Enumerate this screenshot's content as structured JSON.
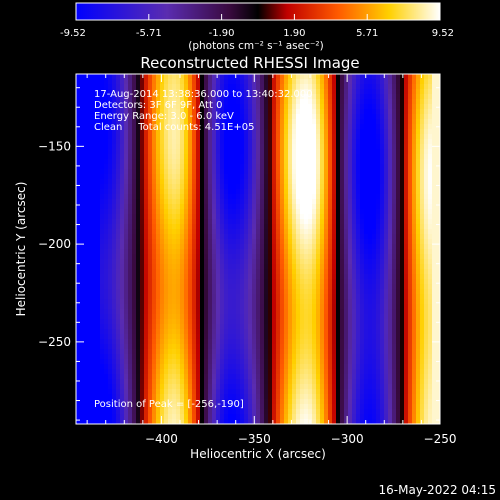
{
  "colorbar": {
    "ticks": [
      "-9.52",
      "-5.71",
      "-1.90",
      "1.90",
      "5.71",
      "9.52"
    ],
    "unit_label": "(photons cm⁻² s⁻¹ asec⁻²)",
    "min": -9.52,
    "max": 9.52
  },
  "title": "Reconstructed RHESSI Image",
  "annotations": {
    "time": "17-Aug-2014 13:38:36.000 to 13:40:32.000",
    "detectors": "Detectors: 3F 6F 9F, Att 0",
    "energy": "Energy Range: 3.0 - 6.0 keV",
    "clean": "Clean     Total counts: 4.51E+05",
    "peak": "Position of Peak = [-256,-190]"
  },
  "footer_date": "16-May-2022 04:15",
  "chart_data": {
    "type": "heatmap",
    "title": "Reconstructed RHESSI Image",
    "xlabel": "Heliocentric X (arcsec)",
    "ylabel": "Heliocentric Y (arcsec)",
    "xlim": [
      -446,
      -250
    ],
    "ylim": [
      -292,
      -113
    ],
    "x_ticks": [
      -400,
      -350,
      -300,
      -250
    ],
    "y_ticks": [
      -150,
      -200,
      -250
    ],
    "x_tick_labels": [
      "−400",
      "−350",
      "−300",
      "−250"
    ],
    "y_tick_labels": [
      "−150",
      "−200",
      "−250"
    ],
    "color_range": [
      -9.52,
      9.52
    ],
    "colormap": [
      "#0000ff",
      "#6a2aa0",
      "#000000",
      "#ff0000",
      "#ff8c00",
      "#ffff00",
      "#ffffff"
    ],
    "bands": [
      {
        "x": -433,
        "label": "minimum",
        "value": -9.5
      },
      {
        "x": -393,
        "label": "maximum",
        "value": 7.8
      },
      {
        "x": -362,
        "label": "minimum",
        "value": -9.0
      },
      {
        "x": -322,
        "label": "maximum",
        "value": 9.3
      },
      {
        "x": -288,
        "label": "minimum",
        "value": -9.5
      },
      {
        "x": -254,
        "label": "maximum",
        "value": 9.0
      }
    ],
    "peak": {
      "x": -256,
      "y": -190
    }
  }
}
